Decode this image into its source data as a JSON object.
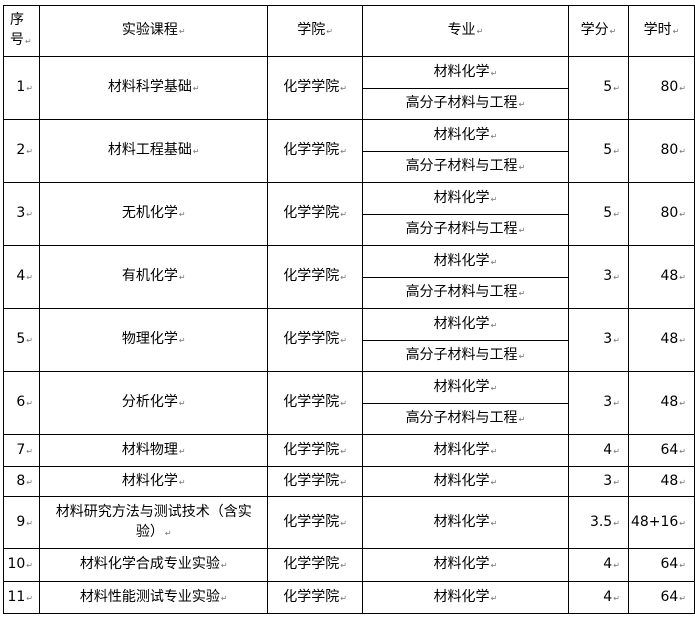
{
  "header": {
    "index": "序号",
    "course": "实验课程",
    "college": "学院",
    "major": "专业",
    "credits": "学分",
    "hours": "学时"
  },
  "rows": [
    {
      "index": "1",
      "course": "材料科学基础",
      "college": "化学学院",
      "majors": [
        "材料化学",
        "高分子材料与工程"
      ],
      "credits": "5",
      "hours": "80"
    },
    {
      "index": "2",
      "course": "材料工程基础",
      "college": "化学学院",
      "majors": [
        "材料化学",
        "高分子材料与工程"
      ],
      "credits": "5",
      "hours": "80"
    },
    {
      "index": "3",
      "course": "无机化学",
      "college": "化学学院",
      "majors": [
        "材料化学",
        "高分子材料与工程"
      ],
      "credits": "5",
      "hours": "80"
    },
    {
      "index": "4",
      "course": "有机化学",
      "college": "化学学院",
      "majors": [
        "材料化学",
        "高分子材料与工程"
      ],
      "credits": "3",
      "hours": "48"
    },
    {
      "index": "5",
      "course": "物理化学",
      "college": "化学学院",
      "majors": [
        "材料化学",
        "高分子材料与工程"
      ],
      "credits": "3",
      "hours": "48"
    },
    {
      "index": "6",
      "course": "分析化学",
      "college": "化学学院",
      "majors": [
        "材料化学",
        "高分子材料与工程"
      ],
      "credits": "3",
      "hours": "48"
    },
    {
      "index": "7",
      "course": "材料物理",
      "college": "化学学院",
      "majors": [
        "材料化学"
      ],
      "credits": "4",
      "hours": "64"
    },
    {
      "index": "8",
      "course": "材料化学",
      "college": "化学学院",
      "majors": [
        "材料化学"
      ],
      "credits": "3",
      "hours": "48"
    },
    {
      "index": "9",
      "course": "材料研究方法与测试技术（含实验）",
      "college": "化学学院",
      "majors": [
        "材料化学"
      ],
      "credits": "3.5",
      "hours": "48+16"
    },
    {
      "index": "10",
      "course": "材料化学合成专业实验",
      "college": "化学学院",
      "majors": [
        "材料化学"
      ],
      "credits": "4",
      "hours": "64"
    },
    {
      "index": "11",
      "course": "材料性能测试专业实验",
      "college": "化学学院",
      "majors": [
        "材料化学"
      ],
      "credits": "4",
      "hours": "64"
    }
  ]
}
